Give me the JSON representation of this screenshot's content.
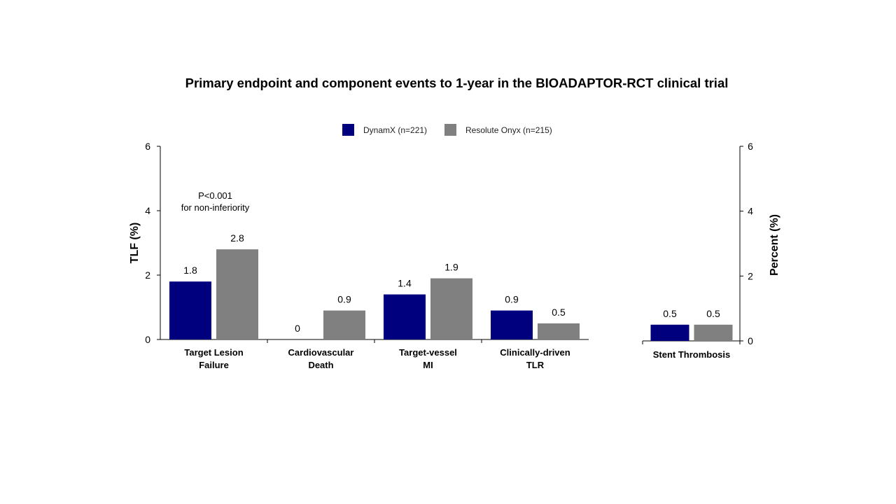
{
  "chart_data": [
    {
      "type": "bar",
      "title": "Primary endpoint and component events to 1-year in the BIOADAPTOR-RCT clinical trial",
      "ylabel": "TLF (%)",
      "ylim": [
        0,
        6
      ],
      "yticks": [
        0,
        2,
        4,
        6
      ],
      "legend_position": "top-center",
      "categories": [
        [
          "Target Lesion",
          "Failure"
        ],
        [
          "Cardiovascular",
          "Death"
        ],
        [
          "Target-vessel",
          "MI"
        ],
        [
          "Clinically-driven",
          "TLR"
        ]
      ],
      "series": [
        {
          "name": "DynamX (n=221)",
          "color": "#00007F",
          "values": [
            1.8,
            0,
            1.4,
            0.9
          ]
        },
        {
          "name": "Resolute Onyx (n=215)",
          "color": "#808080",
          "values": [
            2.8,
            0.9,
            1.9,
            0.5
          ]
        }
      ],
      "annotation": [
        "P<0.001",
        "for non-inferiority"
      ]
    },
    {
      "type": "bar",
      "ylabel": "Percent (%)",
      "ylim": [
        0,
        6
      ],
      "yticks": [
        0,
        2,
        4,
        6
      ],
      "categories": [
        [
          "Stent Thrombosis"
        ]
      ],
      "series": [
        {
          "name": "DynamX (n=221)",
          "color": "#00007F",
          "values": [
            0.5
          ]
        },
        {
          "name": "Resolute Onyx (n=215)",
          "color": "#808080",
          "values": [
            0.5
          ]
        }
      ]
    }
  ]
}
